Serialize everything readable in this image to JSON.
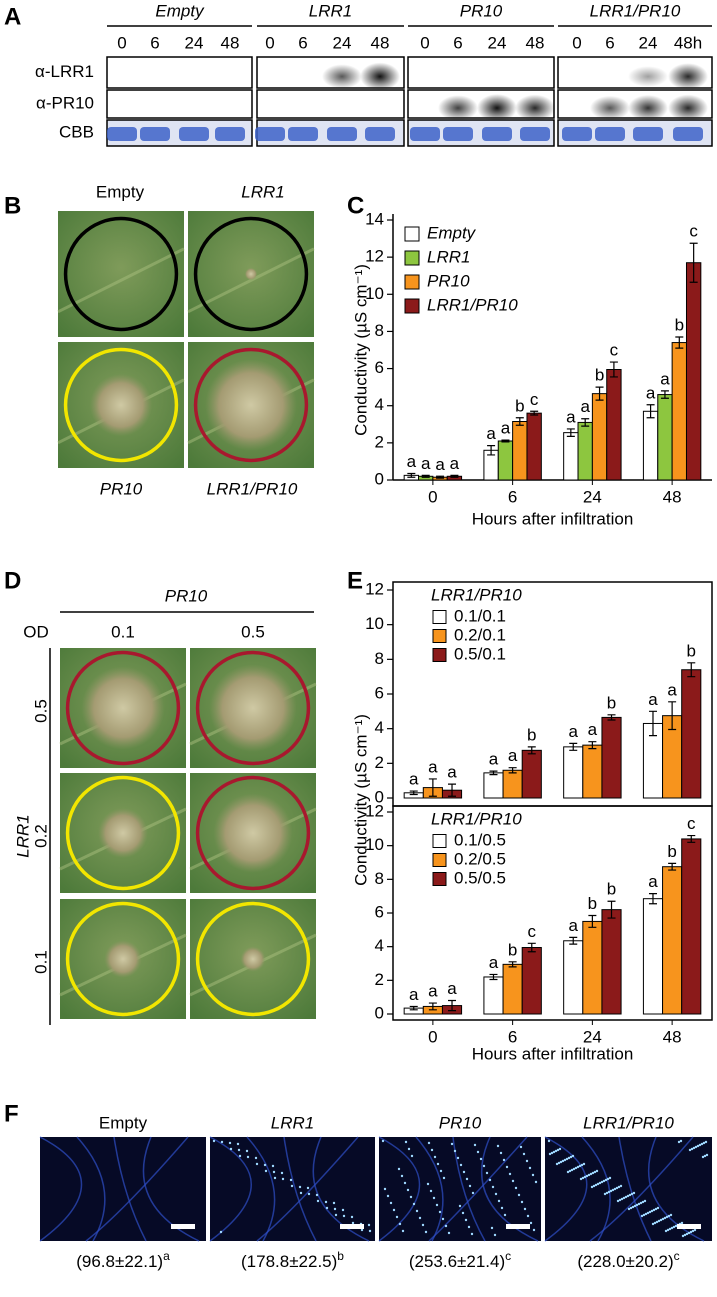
{
  "panel_labels": [
    "A",
    "B",
    "C",
    "D",
    "E",
    "F"
  ],
  "blot": {
    "groups": [
      {
        "name": "Empty",
        "times": [
          "0",
          "6",
          "24",
          "48"
        ]
      },
      {
        "name": "LRR1",
        "times": [
          "0",
          "6",
          "24",
          "48"
        ]
      },
      {
        "name": "PR10",
        "times": [
          "0",
          "6",
          "24",
          "48"
        ]
      },
      {
        "name": "LRR1/PR10",
        "times": [
          "0",
          "6",
          "24",
          "48h"
        ]
      }
    ],
    "rows": [
      "α-LRR1",
      "α-PR10",
      "CBB"
    ]
  },
  "leaf_assay": {
    "labels": [
      "Empty",
      "LRR1",
      "PR10",
      "LRR1/PR10"
    ]
  },
  "od_titration": {
    "title": "PR10",
    "od_label": "OD",
    "columns": [
      "0.1",
      "0.5"
    ],
    "row_title": "LRR1",
    "rows": [
      "0.5",
      "0.2",
      "0.1"
    ]
  },
  "callose": {
    "panels": [
      {
        "label": "Empty",
        "caption": "(96.8±22.1)",
        "letter": "a"
      },
      {
        "label": "LRR1",
        "caption": "(178.8±22.5)",
        "letter": "b"
      },
      {
        "label": "PR10",
        "caption": "(253.6±21.4)",
        "letter": "c"
      },
      {
        "label": "LRR1/PR10",
        "caption": "(228.0±20.2)",
        "letter": "c"
      }
    ]
  },
  "chart_data": [
    {
      "type": "bar",
      "ylabel": "Conductivity (µS cm⁻¹)",
      "xlabel": "Hours after infiltration",
      "categories": [
        "0",
        "6",
        "24",
        "48"
      ],
      "ylim": [
        0,
        14
      ],
      "yticks": [
        0,
        2,
        4,
        6,
        8,
        10,
        12,
        14
      ],
      "frame": false,
      "series": [
        {
          "name": "Empty",
          "color": "#ffffff",
          "values": [
            0.25,
            1.6,
            2.55,
            3.7
          ],
          "errors": [
            0.1,
            0.25,
            0.2,
            0.35
          ],
          "significance": [
            "a",
            "a",
            "a",
            "a"
          ]
        },
        {
          "name": "LRR1",
          "color": "#8dc63f",
          "values": [
            0.2,
            2.1,
            3.1,
            4.6
          ],
          "errors": [
            0.05,
            0.05,
            0.2,
            0.2
          ],
          "significance": [
            "a",
            "a",
            "a",
            "a"
          ]
        },
        {
          "name": "PR10",
          "color": "#f7941d",
          "values": [
            0.15,
            3.15,
            4.65,
            7.4
          ],
          "errors": [
            0.05,
            0.2,
            0.35,
            0.3
          ],
          "significance": [
            "a",
            "b",
            "b",
            "b"
          ]
        },
        {
          "name": "LRR1/PR10",
          "color": "#8b1a1a",
          "values": [
            0.2,
            3.6,
            5.95,
            11.7
          ],
          "errors": [
            0.05,
            0.1,
            0.4,
            1.05
          ],
          "significance": [
            "a",
            "c",
            "c",
            "c"
          ]
        }
      ]
    },
    {
      "type": "bar",
      "legend_title": "LRR1/PR10",
      "ylim": [
        0,
        12
      ],
      "yticks": [
        0,
        2,
        4,
        6,
        8,
        10,
        12
      ],
      "frame": true,
      "series": [
        {
          "name": "0.1/0.1",
          "color": "#ffffff",
          "values": [
            0.3,
            1.45,
            2.95,
            4.3
          ],
          "errors": [
            0.1,
            0.1,
            0.2,
            0.7
          ],
          "significance": [
            "a",
            "a",
            "a",
            "a"
          ]
        },
        {
          "name": "0.2/0.1",
          "color": "#f7941d",
          "values": [
            0.6,
            1.6,
            3.05,
            4.75
          ],
          "errors": [
            0.5,
            0.15,
            0.2,
            0.8
          ],
          "significance": [
            "a",
            "a",
            "a",
            "a"
          ]
        },
        {
          "name": "0.5/0.1",
          "color": "#8b1a1a",
          "values": [
            0.45,
            2.75,
            4.65,
            7.4
          ],
          "errors": [
            0.35,
            0.2,
            0.15,
            0.4
          ],
          "significance": [
            "a",
            "b",
            "b",
            "b"
          ]
        }
      ]
    },
    {
      "type": "bar",
      "legend_title": "LRR1/PR10",
      "ylabel": "Conductivity (µS cm⁻¹)",
      "xlabel": "Hours after infiltration",
      "categories": [
        "0",
        "6",
        "24",
        "48"
      ],
      "ylim": [
        0,
        12
      ],
      "yticks": [
        0,
        2,
        4,
        6,
        8,
        10,
        12
      ],
      "frame": true,
      "series": [
        {
          "name": "0.1/0.5",
          "color": "#ffffff",
          "values": [
            0.35,
            2.2,
            4.35,
            6.85
          ],
          "errors": [
            0.1,
            0.15,
            0.2,
            0.3
          ],
          "significance": [
            "a",
            "a",
            "a",
            "a"
          ]
        },
        {
          "name": "0.2/0.5",
          "color": "#f7941d",
          "values": [
            0.45,
            2.95,
            5.5,
            8.75
          ],
          "errors": [
            0.2,
            0.15,
            0.35,
            0.2
          ],
          "significance": [
            "a",
            "b",
            "b",
            "b"
          ]
        },
        {
          "name": "0.5/0.5",
          "color": "#8b1a1a",
          "values": [
            0.5,
            3.95,
            6.2,
            10.4
          ],
          "errors": [
            0.3,
            0.25,
            0.5,
            0.2
          ],
          "significance": [
            "a",
            "c",
            "b",
            "c"
          ]
        }
      ]
    }
  ]
}
